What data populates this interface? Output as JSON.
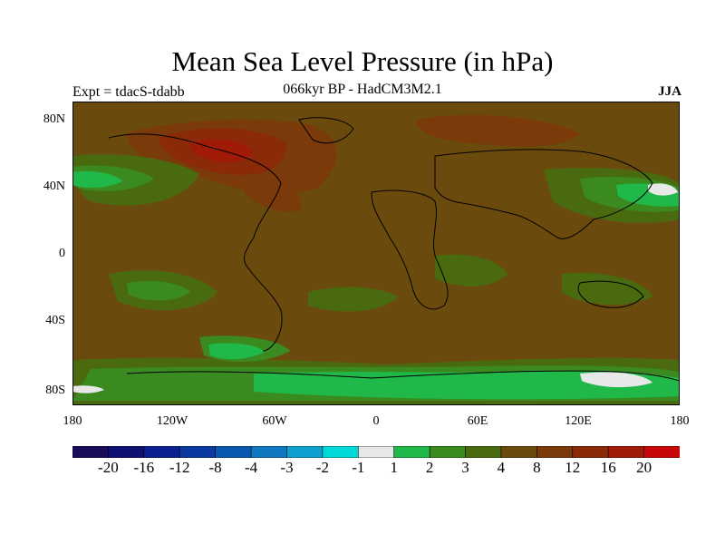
{
  "header": {
    "title": "Mean Sea Level Pressure (in hPa)",
    "experiment": "Expt = tdacS-tdabb",
    "subtitle": "066kyr BP - HadCM3M2.1",
    "season": "JJA"
  },
  "map": {
    "lat_labels": [
      "80N",
      "40N",
      "0",
      "40S",
      "80S"
    ],
    "lon_labels": [
      "180",
      "120W",
      "60W",
      "0",
      "60E",
      "120E",
      "180"
    ],
    "background_color": "#6b4a0e"
  },
  "colorbar": {
    "colors": [
      "#1a0a5a",
      "#0d1070",
      "#0a2090",
      "#0a3aa0",
      "#0a58b0",
      "#1078c0",
      "#10a0d0",
      "#00d8d8",
      "#e8e8e8",
      "#20b848",
      "#3a8a20",
      "#4a6a10",
      "#6b4a0e",
      "#7a3a0a",
      "#8a2a08",
      "#a01a08",
      "#c80808"
    ],
    "labels": [
      "-20",
      "-16",
      "-12",
      "-8",
      "-4",
      "-3",
      "-2",
      "-1",
      "1",
      "2",
      "3",
      "4",
      "8",
      "12",
      "16",
      "20"
    ]
  }
}
